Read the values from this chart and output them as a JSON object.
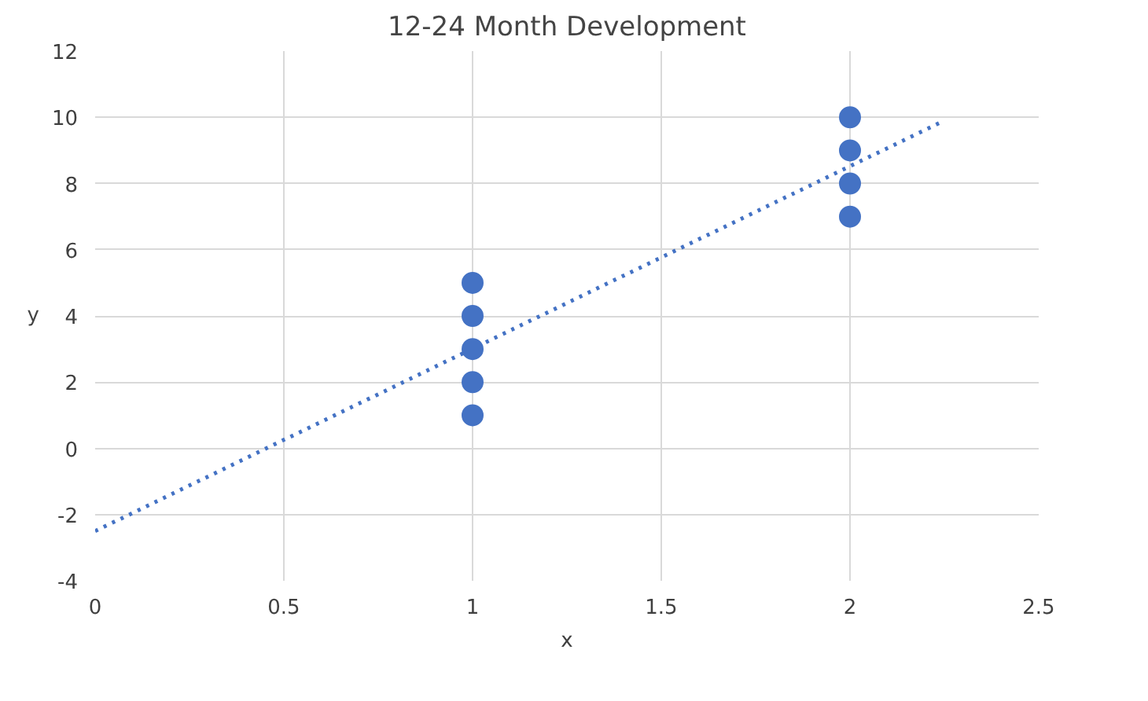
{
  "chart_data": {
    "type": "scatter",
    "title": "12-24 Month Development",
    "xlabel": "x",
    "ylabel": "y",
    "xlim": [
      0,
      2.5
    ],
    "xticks": [
      0,
      0.5,
      1,
      1.5,
      2,
      2.5
    ],
    "ylim": [
      -4,
      12
    ],
    "yticks": [
      -4,
      -2,
      0,
      2,
      4,
      6,
      8,
      10,
      12
    ],
    "grid": true,
    "marker": "circle",
    "series": [
      {
        "color": "#4472c4",
        "x": [
          1,
          1,
          1,
          1,
          1,
          2,
          2,
          2,
          2
        ],
        "values": [
          1,
          2,
          3,
          4,
          5,
          7,
          8,
          9,
          10
        ]
      },
      {
        "type": "line",
        "color": "#4472c4",
        "marker": "none",
        "line_style": "dotted",
        "x": [
          0,
          2.25
        ],
        "values": [
          -2.5,
          9.9
        ]
      }
    ]
  }
}
